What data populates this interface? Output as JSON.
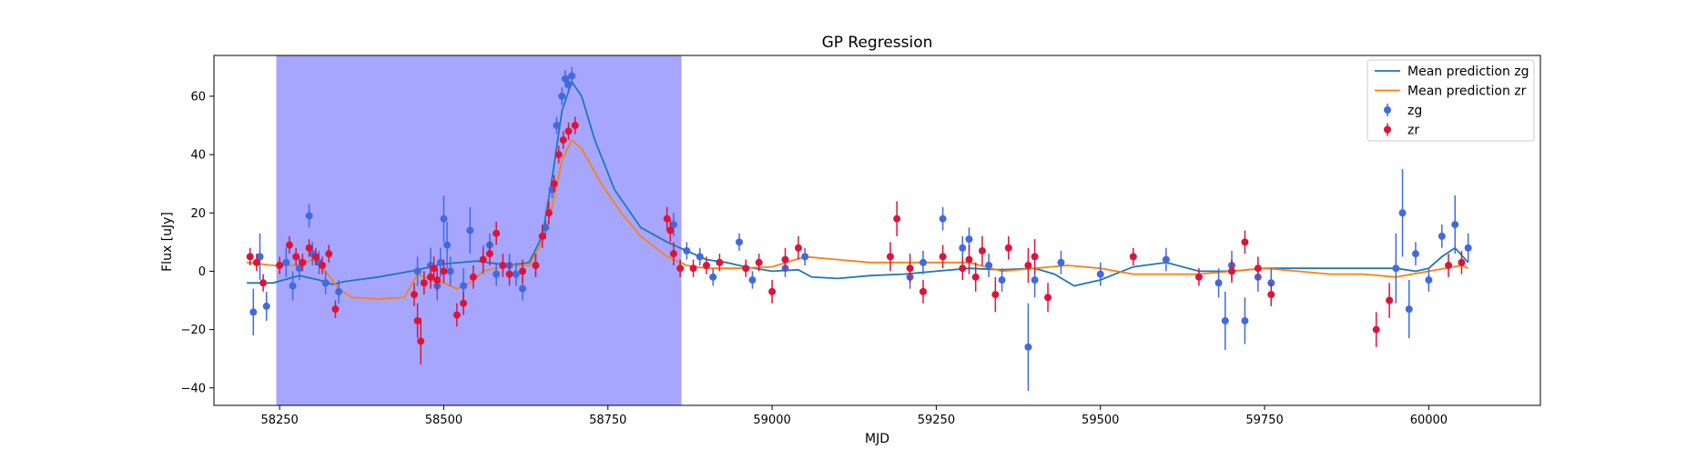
{
  "chart_data": {
    "type": "scatter",
    "title": "GP Regression",
    "xlabel": "MJD",
    "ylabel": "Flux [uJy]",
    "xlim": [
      58150,
      60170
    ],
    "ylim": [
      -46,
      74
    ],
    "xticks": [
      58250,
      58500,
      58750,
      59000,
      59250,
      59500,
      59750,
      60000
    ],
    "yticks": [
      -40,
      -20,
      0,
      20,
      40,
      60
    ],
    "grid": false,
    "legend_position": "top-right",
    "shaded_region": {
      "x_start": 58245,
      "x_end": 58862,
      "color": "#a6a6ff"
    },
    "series": [
      {
        "name": "Mean prediction zg",
        "kind": "line",
        "color": "#1f77b4",
        "x": [
          58200,
          58240,
          58280,
          58310,
          58330,
          58350,
          58400,
          58450,
          58500,
          58550,
          58600,
          58630,
          58650,
          58665,
          58680,
          58695,
          58710,
          58730,
          58760,
          58800,
          58840,
          58870,
          58900,
          58930,
          58960,
          59000,
          59040,
          59060,
          59100,
          59150,
          59200,
          59250,
          59300,
          59350,
          59400,
          59430,
          59460,
          59500,
          59550,
          59600,
          59650,
          59700,
          59750,
          59800,
          59850,
          59900,
          59950,
          59980,
          60000,
          60020,
          60040,
          60060
        ],
        "y": [
          -4,
          -4,
          -1.5,
          -3,
          -4.5,
          -3.5,
          -2,
          0,
          2.5,
          3.5,
          2,
          3,
          12,
          32,
          55,
          65,
          60,
          45,
          28,
          15,
          10,
          7,
          4,
          3,
          1.5,
          0,
          0.5,
          -2,
          -2.5,
          -1.5,
          -1,
          0,
          1,
          0.5,
          1,
          -1,
          -5,
          -3,
          1.5,
          3,
          0,
          0,
          1,
          1,
          1,
          1,
          1,
          0,
          1,
          5,
          8,
          3
        ]
      },
      {
        "name": "Mean prediction zr",
        "kind": "line",
        "color": "#ff7f0e",
        "x": [
          58200,
          58240,
          58280,
          58300,
          58320,
          58340,
          58360,
          58400,
          58440,
          58460,
          58480,
          58500,
          58520,
          58540,
          58560,
          58600,
          58630,
          58650,
          58665,
          58680,
          58695,
          58710,
          58740,
          58770,
          58800,
          58840,
          58870,
          58900,
          58950,
          59000,
          59050,
          59100,
          59150,
          59200,
          59250,
          59300,
          59350,
          59400,
          59450,
          59500,
          59550,
          59600,
          59650,
          59700,
          59750,
          59800,
          59850,
          59900,
          59950,
          60000,
          60050,
          60060
        ],
        "y": [
          3,
          2,
          2,
          4,
          0,
          -6,
          -9,
          -9.5,
          -9,
          -1,
          -3,
          -4,
          -6,
          -4,
          0,
          2,
          2,
          10,
          22,
          38,
          45,
          42,
          30,
          20,
          12,
          5,
          2,
          1,
          1,
          1.5,
          5,
          4,
          3,
          3,
          3,
          3,
          0,
          1,
          2,
          1,
          -1,
          -1,
          -1,
          0,
          1,
          0,
          -1,
          -1,
          -2,
          0,
          2,
          1
        ]
      },
      {
        "name": "zg",
        "kind": "errorbar",
        "color": "#4169e1",
        "x": [
          58210,
          58220,
          58230,
          58260,
          58270,
          58280,
          58295,
          58300,
          58310,
          58320,
          58340,
          58460,
          58480,
          58490,
          58495,
          58500,
          58505,
          58510,
          58530,
          58540,
          58560,
          58570,
          58580,
          58600,
          58610,
          58620,
          58640,
          58655,
          58665,
          58672,
          58680,
          58685,
          58690,
          58695,
          58850,
          58870,
          58890,
          58910,
          58950,
          58970,
          59020,
          59050,
          59210,
          59230,
          59260,
          59290,
          59300,
          59330,
          59350,
          59390,
          59400,
          59440,
          59500,
          59600,
          59680,
          59690,
          59700,
          59720,
          59740,
          59760,
          59950,
          59960,
          59970,
          59980,
          60000,
          60020,
          60040,
          60060
        ],
        "y": [
          -14,
          5,
          -12,
          3,
          -5,
          1,
          19,
          6,
          3,
          -4,
          -7,
          0,
          2,
          -5,
          3,
          18,
          9,
          0,
          -5,
          14,
          4,
          9,
          -1,
          2,
          -1,
          -6,
          2,
          15,
          28,
          50,
          60,
          66,
          64,
          67,
          16,
          7,
          5,
          -2,
          10,
          -3,
          1,
          5,
          -2,
          3,
          18,
          8,
          11,
          2,
          -3,
          -26,
          -3,
          3,
          -1,
          4,
          -4,
          -17,
          2,
          -17,
          -2,
          -4,
          1,
          20,
          -13,
          6,
          -3,
          12,
          16,
          8
        ],
        "yerr": [
          8,
          8,
          5,
          5,
          5,
          4,
          4,
          4,
          4,
          4,
          4,
          5,
          6,
          5,
          5,
          8,
          8,
          5,
          6,
          8,
          5,
          4,
          4,
          4,
          4,
          4,
          4,
          4,
          3,
          3,
          3,
          3,
          3,
          3,
          4,
          3,
          3,
          3,
          3,
          3,
          3,
          3,
          4,
          4,
          4,
          4,
          4,
          4,
          4,
          15,
          6,
          4,
          4,
          4,
          5,
          10,
          5,
          8,
          5,
          5,
          12,
          15,
          10,
          4,
          4,
          4,
          10,
          5
        ]
      },
      {
        "name": "zr",
        "kind": "errorbar",
        "color": "#dc143c",
        "x": [
          58205,
          58215,
          58225,
          58250,
          58265,
          58275,
          58285,
          58295,
          58305,
          58315,
          58325,
          58335,
          58455,
          58460,
          58465,
          58470,
          58480,
          58485,
          58490,
          58500,
          58520,
          58530,
          58545,
          58560,
          58570,
          58580,
          58590,
          58600,
          58620,
          58640,
          58650,
          58660,
          58668,
          58675,
          58682,
          58690,
          58700,
          58840,
          58845,
          58850,
          58860,
          58880,
          58900,
          58920,
          58960,
          58980,
          59000,
          59020,
          59040,
          59180,
          59190,
          59210,
          59230,
          59260,
          59290,
          59300,
          59310,
          59320,
          59340,
          59360,
          59390,
          59400,
          59420,
          59550,
          59650,
          59700,
          59720,
          59740,
          59760,
          59920,
          59940,
          60030,
          60050
        ],
        "y": [
          5,
          3,
          -4,
          2,
          9,
          5,
          3,
          8,
          5,
          2,
          6,
          -13,
          -8,
          -17,
          -24,
          -4,
          -2,
          1,
          -3,
          0,
          -15,
          -11,
          -2,
          4,
          6,
          13,
          2,
          -1,
          0,
          2,
          12,
          20,
          30,
          40,
          45,
          48,
          50,
          18,
          14,
          6,
          1,
          1,
          2,
          3,
          1,
          3,
          -7,
          4,
          8,
          5,
          18,
          1,
          -7,
          5,
          1,
          4,
          -2,
          7,
          -8,
          8,
          2,
          5,
          -9,
          5,
          -2,
          0,
          10,
          1,
          -8,
          -20,
          -10,
          2,
          3
        ],
        "yerr": [
          3,
          3,
          3,
          3,
          3,
          3,
          3,
          3,
          3,
          3,
          3,
          3,
          4,
          6,
          8,
          4,
          4,
          4,
          4,
          4,
          4,
          4,
          4,
          4,
          4,
          4,
          4,
          4,
          4,
          4,
          4,
          4,
          3,
          3,
          3,
          3,
          3,
          4,
          4,
          4,
          3,
          3,
          3,
          3,
          3,
          3,
          4,
          4,
          4,
          5,
          6,
          5,
          4,
          4,
          4,
          5,
          5,
          5,
          6,
          4,
          6,
          6,
          5,
          3,
          3,
          4,
          4,
          4,
          4,
          6,
          6,
          4,
          4
        ]
      }
    ]
  }
}
